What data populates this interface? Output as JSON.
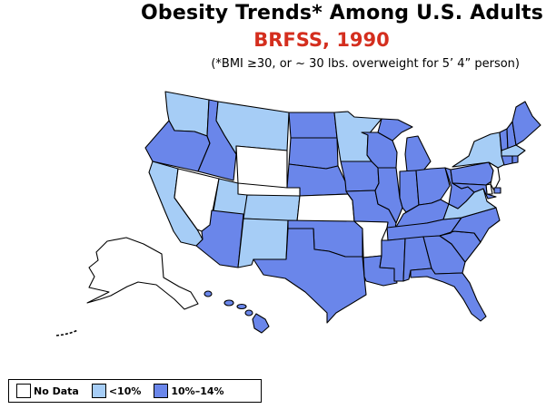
{
  "title": "Obesity Trends*  Among U.S. Adults",
  "subtitle": "BRFSS, 1990",
  "note": "(*BMI ≥30, or ~ 30 lbs. overweight for 5’ 4” person)",
  "colors": {
    "subtitle": "#d42e1e",
    "no_data": "#ffffff",
    "low": "#a6cdf6",
    "mid": "#6a86ea",
    "outline": "#000000"
  },
  "legend": {
    "items": [
      {
        "label": "No Data",
        "category": "no_data"
      },
      {
        "label": "<10%",
        "category": "low"
      },
      {
        "label": "10%–14%",
        "category": "mid"
      }
    ]
  },
  "states": [
    {
      "name": "WA",
      "category": "low"
    },
    {
      "name": "OR",
      "category": "mid"
    },
    {
      "name": "CA",
      "category": "low"
    },
    {
      "name": "ID",
      "category": "mid"
    },
    {
      "name": "NV",
      "category": "no_data"
    },
    {
      "name": "MT",
      "category": "low"
    },
    {
      "name": "WY",
      "category": "no_data"
    },
    {
      "name": "UT",
      "category": "low"
    },
    {
      "name": "CO",
      "category": "low"
    },
    {
      "name": "AZ",
      "category": "mid"
    },
    {
      "name": "NM",
      "category": "low"
    },
    {
      "name": "ND",
      "category": "mid"
    },
    {
      "name": "SD",
      "category": "mid"
    },
    {
      "name": "NE",
      "category": "mid"
    },
    {
      "name": "KS",
      "category": "no_data"
    },
    {
      "name": "OK",
      "category": "mid"
    },
    {
      "name": "TX",
      "category": "mid"
    },
    {
      "name": "MN",
      "category": "low"
    },
    {
      "name": "IA",
      "category": "mid"
    },
    {
      "name": "MO",
      "category": "mid"
    },
    {
      "name": "AR",
      "category": "no_data"
    },
    {
      "name": "LA",
      "category": "mid"
    },
    {
      "name": "WI",
      "category": "mid"
    },
    {
      "name": "IL",
      "category": "mid"
    },
    {
      "name": "MI",
      "category": "mid"
    },
    {
      "name": "IN",
      "category": "mid"
    },
    {
      "name": "OH",
      "category": "mid"
    },
    {
      "name": "KY",
      "category": "mid"
    },
    {
      "name": "TN",
      "category": "mid"
    },
    {
      "name": "MS",
      "category": "mid"
    },
    {
      "name": "AL",
      "category": "mid"
    },
    {
      "name": "GA",
      "category": "mid"
    },
    {
      "name": "FL",
      "category": "mid"
    },
    {
      "name": "SC",
      "category": "mid"
    },
    {
      "name": "NC",
      "category": "mid"
    },
    {
      "name": "VA",
      "category": "low"
    },
    {
      "name": "WV",
      "category": "mid"
    },
    {
      "name": "PA",
      "category": "mid"
    },
    {
      "name": "NY",
      "category": "low"
    },
    {
      "name": "NJ",
      "category": "no_data"
    },
    {
      "name": "DE",
      "category": "no_data"
    },
    {
      "name": "MD",
      "category": "mid"
    },
    {
      "name": "DC",
      "category": "mid"
    },
    {
      "name": "VT",
      "category": "mid"
    },
    {
      "name": "NH",
      "category": "mid"
    },
    {
      "name": "ME",
      "category": "mid"
    },
    {
      "name": "MA",
      "category": "low"
    },
    {
      "name": "CT",
      "category": "mid"
    },
    {
      "name": "RI",
      "category": "mid"
    },
    {
      "name": "AK",
      "category": "no_data"
    },
    {
      "name": "HI",
      "category": "mid"
    }
  ]
}
